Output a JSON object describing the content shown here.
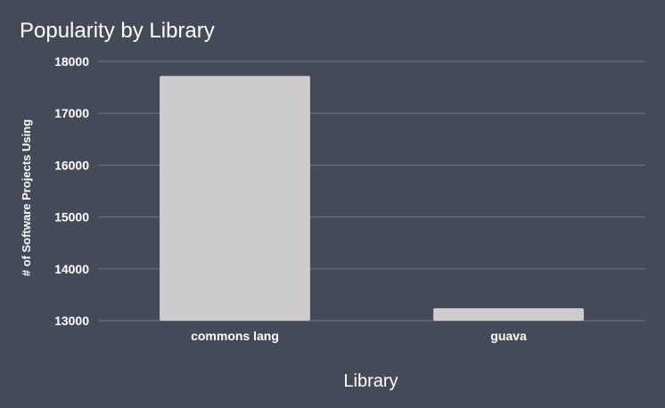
{
  "chart_data": {
    "type": "bar",
    "title": "Popularity by Library",
    "xlabel": "Library",
    "ylabel": "# of Software Projects Using",
    "categories": [
      "commons lang",
      "guava"
    ],
    "values": [
      17720,
      13240
    ],
    "ylim": [
      13000,
      18000
    ],
    "yticks": [
      13000,
      14000,
      15000,
      16000,
      17000,
      18000
    ],
    "grid": true,
    "legend": "none",
    "colors": {
      "background": "#444a58",
      "bar": "#cccccc",
      "grid": "#6f7584",
      "text": "#ffffff"
    }
  }
}
